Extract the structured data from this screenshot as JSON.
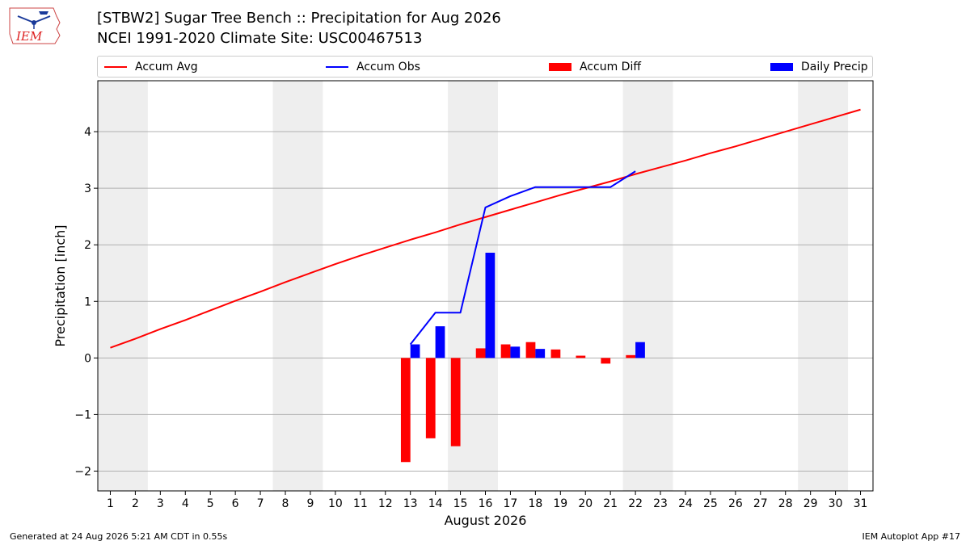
{
  "header": {
    "title": "[STBW2] Sugar Tree Bench :: Precipitation for Aug 2026",
    "subtitle": "NCEI 1991-2020 Climate Site: USC00467513"
  },
  "logo": {
    "text": "IEM",
    "icon": "iem-logo"
  },
  "legend": [
    {
      "label": "Accum Avg",
      "kind": "line",
      "color": "#ff0000"
    },
    {
      "label": "Accum Obs",
      "kind": "line",
      "color": "#0000ff"
    },
    {
      "label": "Accum Diff",
      "kind": "bar",
      "color": "#ff0000"
    },
    {
      "label": "Daily Precip",
      "kind": "bar",
      "color": "#0000ff"
    }
  ],
  "footer": {
    "left": "Generated at 24 Aug 2026 5:21 AM CDT in 0.55s",
    "right": "IEM Autoplot App #17"
  },
  "chart_data": {
    "type": "bar",
    "xlabel": "August 2026",
    "ylabel": "Precipitation [inch]",
    "xlim": [
      0.5,
      31.5
    ],
    "ylim": [
      -2.35,
      4.9
    ],
    "yticks": [
      -2,
      -1,
      0,
      1,
      2,
      3,
      4
    ],
    "ytick_labels": [
      "−2",
      "−1",
      "0",
      "1",
      "2",
      "3",
      "4"
    ],
    "xticks": [
      1,
      2,
      3,
      4,
      5,
      6,
      7,
      8,
      9,
      10,
      11,
      12,
      13,
      14,
      15,
      16,
      17,
      18,
      19,
      20,
      21,
      22,
      23,
      24,
      25,
      26,
      27,
      28,
      29,
      30,
      31
    ],
    "grid": "horizontal",
    "weekend_shading": [
      [
        0.5,
        2.5
      ],
      [
        7.5,
        9.5
      ],
      [
        14.5,
        16.5
      ],
      [
        21.5,
        23.5
      ],
      [
        28.5,
        30.5
      ]
    ],
    "shading_color": "#eeeeee",
    "series": [
      {
        "name": "Accum Avg",
        "kind": "line",
        "color": "#ff0000",
        "x": [
          1,
          2,
          3,
          4,
          5,
          6,
          7,
          8,
          9,
          10,
          11,
          12,
          13,
          14,
          15,
          16,
          17,
          18,
          19,
          20,
          21,
          22,
          23,
          24,
          25,
          26,
          27,
          28,
          29,
          30,
          31
        ],
        "values": [
          0.18,
          0.34,
          0.51,
          0.67,
          0.84,
          1.01,
          1.17,
          1.34,
          1.5,
          1.66,
          1.81,
          1.95,
          2.09,
          2.22,
          2.36,
          2.49,
          2.62,
          2.75,
          2.88,
          3.0,
          3.12,
          3.25,
          3.37,
          3.49,
          3.62,
          3.74,
          3.87,
          4.0,
          4.13,
          4.26,
          4.39
        ]
      },
      {
        "name": "Accum Obs",
        "kind": "line",
        "color": "#0000ff",
        "x": [
          13,
          14,
          15,
          16,
          17,
          18,
          19,
          20,
          21,
          22
        ],
        "values": [
          0.24,
          0.8,
          0.8,
          2.66,
          2.86,
          3.02,
          3.02,
          3.02,
          3.02,
          3.3
        ]
      },
      {
        "name": "Accum Diff",
        "kind": "bar",
        "color": "#ff0000",
        "x": [
          13,
          14,
          15,
          16,
          17,
          18,
          19,
          20,
          21,
          22
        ],
        "values": [
          -1.84,
          -1.42,
          -1.56,
          0.17,
          0.24,
          0.28,
          0.15,
          0.04,
          -0.1,
          0.05
        ]
      },
      {
        "name": "Daily Precip",
        "kind": "bar",
        "color": "#0000ff",
        "x": [
          13,
          14,
          15,
          16,
          17,
          18,
          19,
          20,
          21,
          22
        ],
        "values": [
          0.24,
          0.56,
          0.0,
          1.86,
          0.2,
          0.16,
          0.0,
          0.0,
          0.0,
          0.28
        ]
      }
    ]
  }
}
